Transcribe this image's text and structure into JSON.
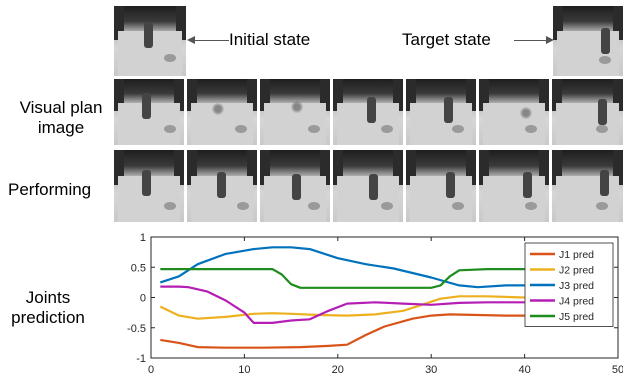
{
  "labels": {
    "initial_state": "Initial state",
    "target_state": "Target state",
    "visual_plan_line1": "Visual plan",
    "visual_plan_line2": "image",
    "performing": "Performing",
    "joints_line1": "Joints",
    "joints_line2": "prediction"
  },
  "rows": {
    "visual_plan_frames": 7,
    "performing_frames": 7
  },
  "chart_data": {
    "type": "line",
    "xlim": [
      0,
      50
    ],
    "ylim": [
      -1,
      1
    ],
    "xticks": [
      "0",
      "10",
      "20",
      "30",
      "40",
      "50"
    ],
    "yticks": [
      "1",
      "0.5",
      "0",
      "-0.5",
      "-1"
    ],
    "legend_position": "top-right",
    "series": [
      {
        "name": "J1 pred",
        "color": "#d95319",
        "x": [
          1,
          3,
          5,
          8,
          12,
          16,
          19,
          21,
          23,
          25,
          28,
          30,
          32,
          35,
          38,
          40
        ],
        "y": [
          -0.7,
          -0.75,
          -0.82,
          -0.83,
          -0.83,
          -0.82,
          -0.8,
          -0.78,
          -0.62,
          -0.48,
          -0.35,
          -0.3,
          -0.28,
          -0.29,
          -0.3,
          -0.3
        ]
      },
      {
        "name": "J2 pred",
        "color": "#edb120",
        "x": [
          1,
          3,
          5,
          8,
          11,
          13,
          15,
          18,
          21,
          24,
          27,
          29,
          31,
          33,
          36,
          40
        ],
        "y": [
          -0.15,
          -0.3,
          -0.35,
          -0.32,
          -0.27,
          -0.26,
          -0.27,
          -0.29,
          -0.3,
          -0.28,
          -0.22,
          -0.12,
          -0.02,
          0.02,
          0.02,
          0.0
        ]
      },
      {
        "name": "J3 pred",
        "color": "#0072bd",
        "x": [
          1,
          3,
          5,
          8,
          11,
          13,
          15,
          17,
          20,
          23,
          26,
          30,
          33,
          35,
          38,
          40
        ],
        "y": [
          0.25,
          0.35,
          0.55,
          0.72,
          0.8,
          0.83,
          0.83,
          0.8,
          0.65,
          0.55,
          0.48,
          0.33,
          0.2,
          0.17,
          0.2,
          0.2
        ]
      },
      {
        "name": "J4 pred",
        "color": "#b51eb5",
        "x": [
          1,
          3,
          4,
          6,
          8,
          10,
          11,
          13,
          15,
          17,
          19,
          21,
          24,
          27,
          30,
          33,
          36,
          40
        ],
        "y": [
          0.18,
          0.18,
          0.17,
          0.1,
          -0.05,
          -0.25,
          -0.42,
          -0.42,
          -0.38,
          -0.36,
          -0.22,
          -0.1,
          -0.08,
          -0.1,
          -0.12,
          -0.09,
          -0.08,
          -0.08
        ]
      },
      {
        "name": "J5 pred",
        "color": "#1e8c1e",
        "x": [
          1,
          5,
          10,
          13,
          14,
          15,
          16,
          20,
          25,
          30,
          31,
          32,
          33,
          36,
          40
        ],
        "y": [
          0.47,
          0.47,
          0.47,
          0.47,
          0.38,
          0.22,
          0.16,
          0.16,
          0.16,
          0.16,
          0.2,
          0.35,
          0.45,
          0.47,
          0.47
        ]
      }
    ]
  }
}
